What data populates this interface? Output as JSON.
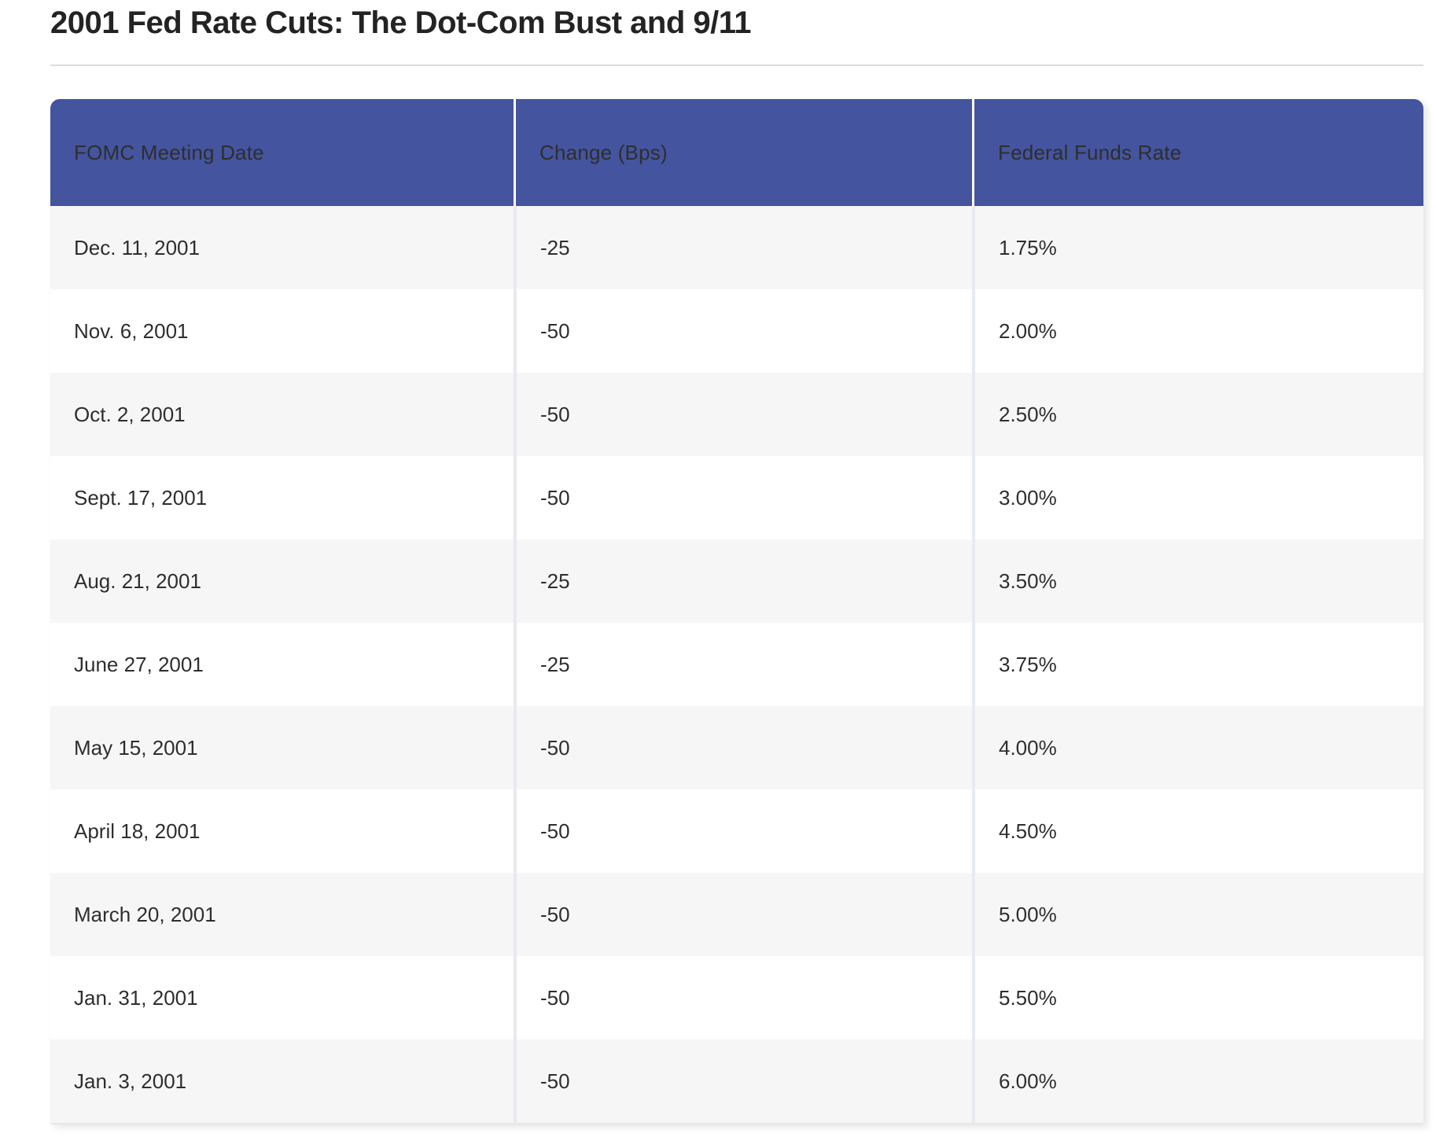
{
  "page": {
    "title": "2001 Fed Rate Cuts: The Dot-Com Bust and 9/11"
  },
  "colors": {
    "header_bg": "#44549e",
    "header_text": "#ffffff",
    "row_alt_bg": "#f6f6f7",
    "row_bg": "#ffffff",
    "body_text": "#2e2e2e",
    "title_divider": "#dcdcdc",
    "column_divider_body": "#e7eaf1"
  },
  "table": {
    "headers": [
      "FOMC Meeting Date",
      "Change (Bps)",
      "Federal Funds Rate"
    ],
    "rows": [
      {
        "date": "Dec. 11, 2001",
        "change": "-25",
        "rate": "1.75%"
      },
      {
        "date": "Nov. 6, 2001",
        "change": "-50",
        "rate": "2.00%"
      },
      {
        "date": "Oct. 2, 2001",
        "change": "-50",
        "rate": "2.50%"
      },
      {
        "date": "Sept. 17, 2001",
        "change": "-50",
        "rate": "3.00%"
      },
      {
        "date": "Aug. 21, 2001",
        "change": "-25",
        "rate": "3.50%"
      },
      {
        "date": "June 27, 2001",
        "change": "-25",
        "rate": "3.75%"
      },
      {
        "date": "May 15, 2001",
        "change": "-50",
        "rate": "4.00%"
      },
      {
        "date": "April 18, 2001",
        "change": "-50",
        "rate": "4.50%"
      },
      {
        "date": "March 20, 2001",
        "change": "-50",
        "rate": "5.00%"
      },
      {
        "date": "Jan. 31, 2001",
        "change": "-50",
        "rate": "5.50%"
      },
      {
        "date": "Jan. 3, 2001",
        "change": "-50",
        "rate": "6.00%"
      }
    ]
  },
  "chart_data": {
    "type": "table",
    "title": "2001 Fed Rate Cuts: The Dot-Com Bust and 9/11",
    "columns": [
      "FOMC Meeting Date",
      "Change (Bps)",
      "Federal Funds Rate"
    ],
    "rows": [
      [
        "Dec. 11, 2001",
        -25,
        "1.75%"
      ],
      [
        "Nov. 6, 2001",
        -50,
        "2.00%"
      ],
      [
        "Oct. 2, 2001",
        -50,
        "2.50%"
      ],
      [
        "Sept. 17, 2001",
        -50,
        "3.00%"
      ],
      [
        "Aug. 21, 2001",
        -25,
        "3.50%"
      ],
      [
        "June 27, 2001",
        -25,
        "3.75%"
      ],
      [
        "May 15, 2001",
        -50,
        "4.00%"
      ],
      [
        "April 18, 2001",
        -50,
        "4.50%"
      ],
      [
        "March 20, 2001",
        -50,
        "5.00%"
      ],
      [
        "Jan. 31, 2001",
        -50,
        "5.50%"
      ],
      [
        "Jan. 3, 2001",
        -50,
        "6.00%"
      ]
    ]
  }
}
